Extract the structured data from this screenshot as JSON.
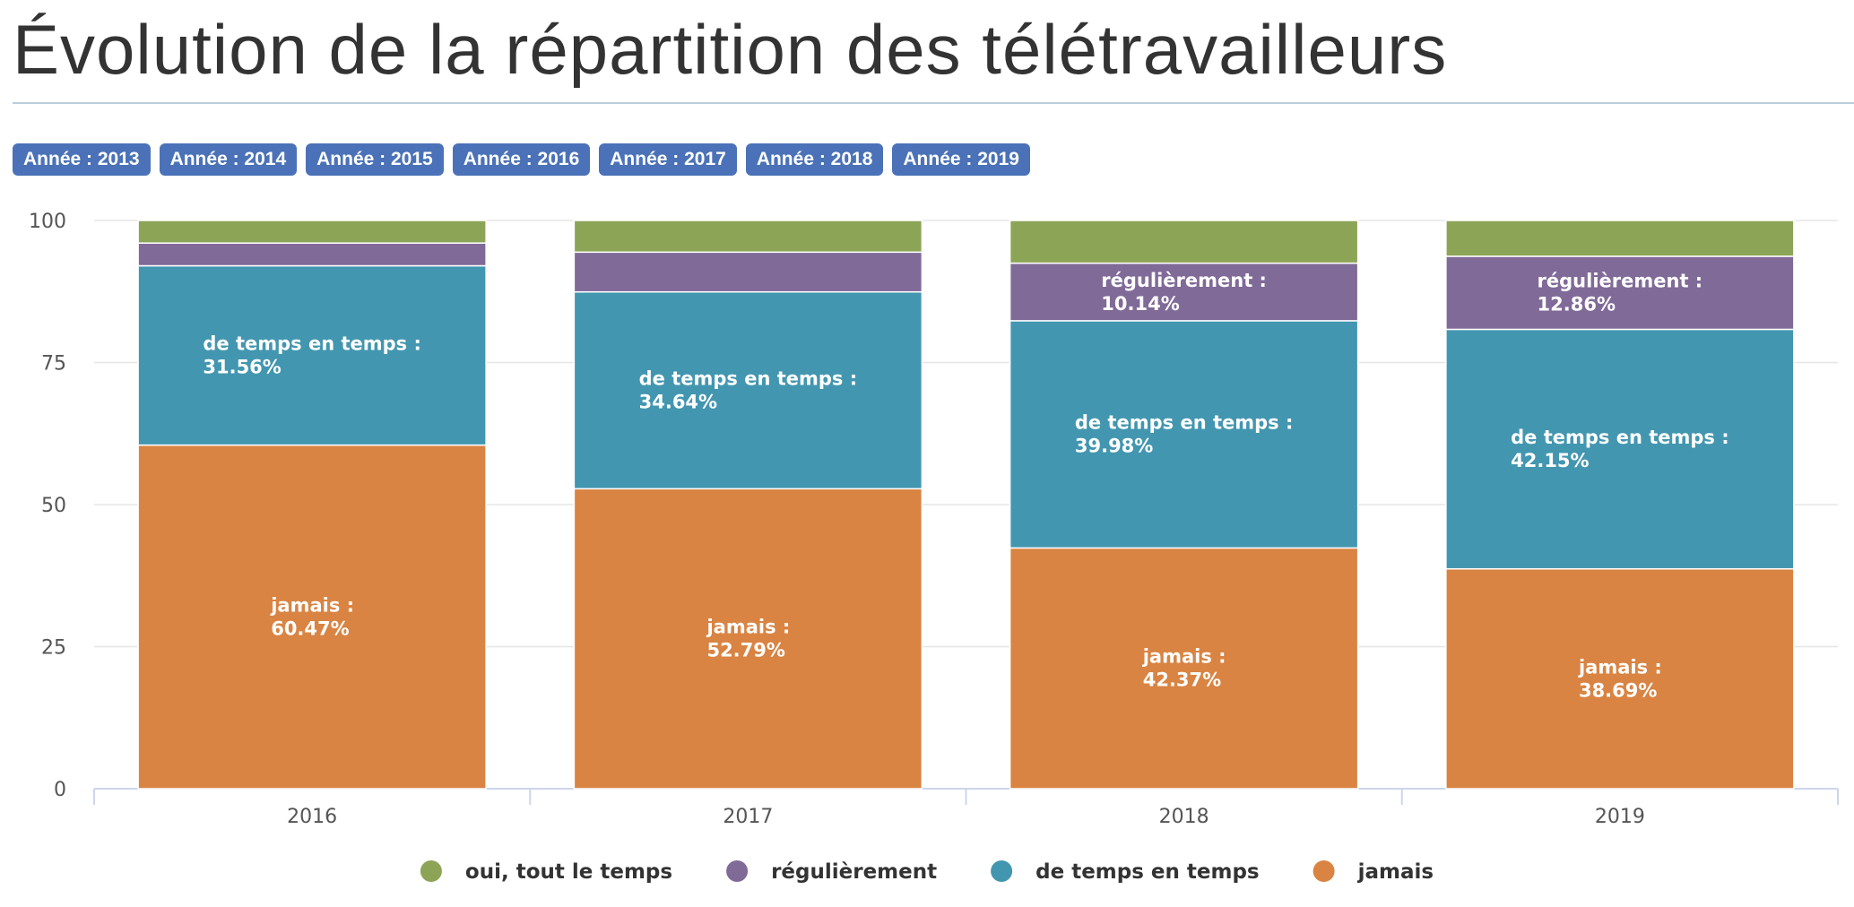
{
  "page": {
    "title": "Évolution de la répartition des télétravailleurs"
  },
  "filters": {
    "years": [
      {
        "label": "Année : 2013"
      },
      {
        "label": "Année : 2014"
      },
      {
        "label": "Année : 2015"
      },
      {
        "label": "Année : 2016"
      },
      {
        "label": "Année : 2017"
      },
      {
        "label": "Année : 2018"
      },
      {
        "label": "Année : 2019"
      }
    ]
  },
  "chart_data": {
    "type": "bar",
    "stacked": true,
    "categories": [
      "2016",
      "2017",
      "2018",
      "2019"
    ],
    "ylim": [
      0,
      100
    ],
    "yticks": [
      0,
      25,
      50,
      75,
      100
    ],
    "grid": true,
    "legend_position": "bottom",
    "series": [
      {
        "name": "jamais",
        "color": "#d98443",
        "values": [
          60.47,
          52.79,
          42.37,
          38.69
        ],
        "labels": [
          "jamais :\n60.47%",
          "jamais :\n52.79%",
          "jamais :\n42.37%",
          "jamais :\n38.69%"
        ]
      },
      {
        "name": "de temps en temps",
        "color": "#4396b0",
        "values": [
          31.56,
          34.64,
          39.98,
          42.15
        ],
        "labels": [
          "de temps en temps :\n31.56%",
          "de temps en temps :\n34.64%",
          "de temps en temps :\n39.98%",
          "de temps en temps :\n42.15%"
        ]
      },
      {
        "name": "régulièrement",
        "color": "#806a98",
        "values": [
          4.0,
          7.0,
          10.14,
          12.86
        ],
        "labels": [
          "",
          "",
          "régulièrement :\n10.14%",
          "régulièrement :\n12.86%"
        ]
      },
      {
        "name": "oui, tout le temps",
        "color": "#8ca456",
        "values": [
          3.97,
          5.57,
          7.51,
          6.3
        ],
        "labels": [
          "",
          "",
          "",
          ""
        ]
      }
    ],
    "legend": [
      {
        "name": "oui, tout le temps",
        "color": "#8ca456"
      },
      {
        "name": "régulièrement",
        "color": "#806a98"
      },
      {
        "name": "de temps en temps",
        "color": "#4396b0"
      },
      {
        "name": "jamais",
        "color": "#d98443"
      }
    ]
  }
}
